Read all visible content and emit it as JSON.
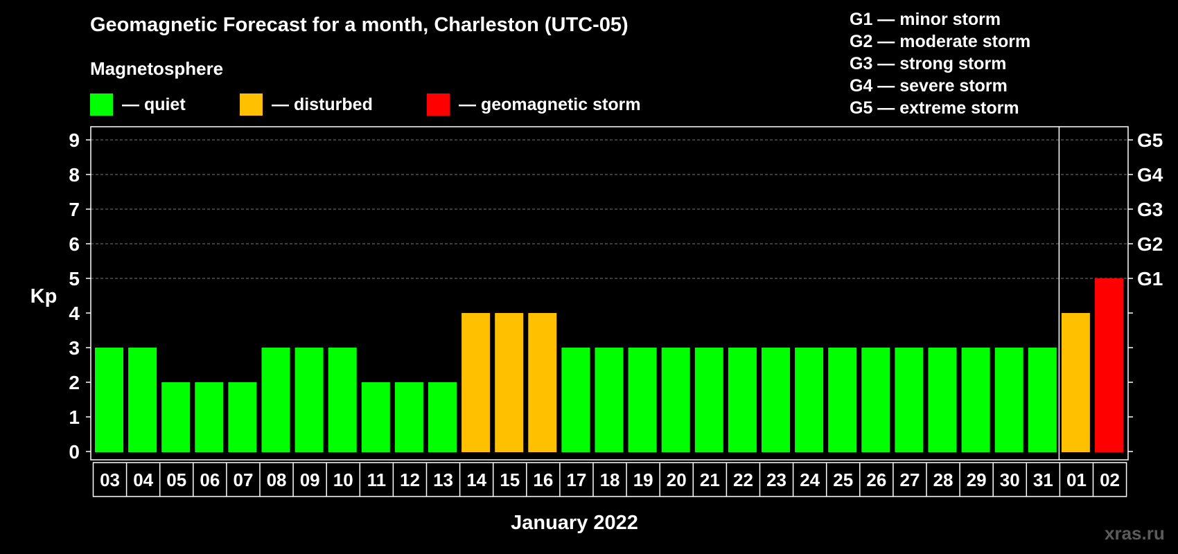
{
  "chart_data": {
    "type": "bar",
    "title": "Geomagnetic Forecast for a month, Charleston (UTC-05)",
    "subtitle": "Magnetosphere",
    "xlabel": "January 2022",
    "ylabel": "Kp",
    "ylim": [
      0,
      9
    ],
    "yticks": [
      "0",
      "1",
      "2",
      "3",
      "4",
      "5",
      "6",
      "7",
      "8",
      "9"
    ],
    "storm_levels": [
      {
        "kp": 5,
        "label": "G1"
      },
      {
        "kp": 6,
        "label": "G2"
      },
      {
        "kp": 7,
        "label": "G3"
      },
      {
        "kp": 8,
        "label": "G4"
      },
      {
        "kp": 9,
        "label": "G5"
      }
    ],
    "categories": [
      "03",
      "04",
      "05",
      "06",
      "07",
      "08",
      "09",
      "10",
      "11",
      "12",
      "13",
      "14",
      "15",
      "16",
      "17",
      "18",
      "19",
      "20",
      "21",
      "22",
      "23",
      "24",
      "25",
      "26",
      "27",
      "28",
      "29",
      "30",
      "31",
      "01",
      "02"
    ],
    "values": [
      3,
      3,
      2,
      2,
      2,
      3,
      3,
      3,
      2,
      2,
      2,
      4,
      4,
      4,
      3,
      3,
      3,
      3,
      3,
      3,
      3,
      3,
      3,
      3,
      3,
      3,
      3,
      3,
      3,
      4,
      5
    ],
    "month_divider_after_index": 28,
    "legend": [
      {
        "label": "— quiet",
        "color": "#00ff00"
      },
      {
        "label": "— disturbed",
        "color": "#ffc000"
      },
      {
        "label": "— geomagnetic storm",
        "color": "#ff0000"
      }
    ],
    "g_legend": [
      "G1 — minor storm",
      "G2 — moderate storm",
      "G3 — strong storm",
      "G4 — severe storm",
      "G5 — extreme storm"
    ]
  },
  "watermark": "xras.ru"
}
